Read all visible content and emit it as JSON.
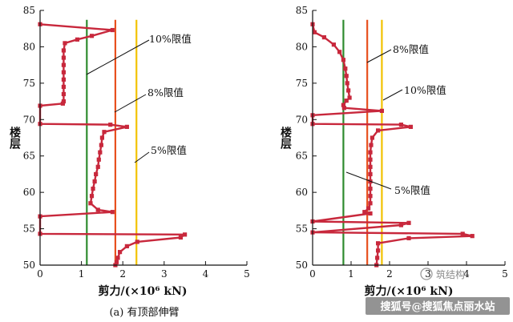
{
  "figure": {
    "caption_a": "(a) 有顶部伸臂",
    "watermark_logo": "筑结构",
    "watermark_bar": "搜狐号@搜狐焦点丽水站"
  },
  "chart_data": [
    {
      "type": "line",
      "xlabel": "剪力/(×10⁶ kN)",
      "ylabel": "楼层",
      "xlim": [
        0,
        5
      ],
      "ylim": [
        50,
        85
      ],
      "xticks": [
        0,
        1,
        2,
        3,
        4,
        5
      ],
      "yticks": [
        50,
        55,
        60,
        65,
        70,
        75,
        80,
        85
      ],
      "grid": false,
      "limit_lines": [
        {
          "label": "10%限值",
          "x": 1.13,
          "color": "#2e8b2e"
        },
        {
          "label": "8%限值",
          "x": 1.82,
          "color": "#e8501e"
        },
        {
          "label": "5%限值",
          "x": 2.33,
          "color": "#f2c200"
        }
      ],
      "series": [
        {
          "color": "#c8283c",
          "points": [
            [
              0.0,
              83.1
            ],
            [
              1.75,
              82.3
            ],
            [
              1.25,
              81.5
            ],
            [
              0.9,
              81.0
            ],
            [
              0.6,
              80.5
            ],
            [
              0.57,
              79.5
            ],
            [
              0.57,
              78.5
            ],
            [
              0.57,
              77.5
            ],
            [
              0.57,
              76.5
            ],
            [
              0.57,
              75.5
            ],
            [
              0.57,
              74.5
            ],
            [
              0.57,
              73.5
            ],
            [
              0.57,
              72.5
            ],
            [
              0.55,
              72.2
            ],
            [
              0.0,
              71.9
            ],
            [
              0.0,
              69.4
            ],
            [
              1.7,
              69.3
            ],
            [
              2.1,
              69.0
            ],
            [
              1.55,
              68.3
            ],
            [
              1.5,
              67.5
            ],
            [
              1.48,
              66.5
            ],
            [
              1.45,
              65.5
            ],
            [
              1.42,
              64.5
            ],
            [
              1.4,
              63.5
            ],
            [
              1.35,
              62.5
            ],
            [
              1.32,
              61.5
            ],
            [
              1.28,
              60.5
            ],
            [
              1.25,
              59.5
            ],
            [
              1.22,
              58.5
            ],
            [
              1.4,
              57.6
            ],
            [
              1.75,
              57.3
            ],
            [
              0.0,
              56.7
            ],
            [
              0.0,
              54.3
            ],
            [
              3.5,
              54.2
            ],
            [
              3.4,
              53.8
            ],
            [
              2.35,
              53.2
            ],
            [
              2.1,
              52.6
            ],
            [
              1.93,
              51.8
            ],
            [
              1.88,
              51.0
            ],
            [
              1.85,
              50.4
            ],
            [
              1.82,
              50.0
            ]
          ]
        }
      ]
    },
    {
      "type": "line",
      "xlabel": "剪力/(×10⁶ kN)",
      "ylabel": "楼层",
      "xlim": [
        0,
        5
      ],
      "ylim": [
        50,
        85
      ],
      "xticks": [
        0,
        1,
        2,
        3,
        4,
        5
      ],
      "yticks": [
        50,
        55,
        60,
        65,
        70,
        75,
        80,
        85
      ],
      "grid": false,
      "limit_lines": [
        {
          "label": "5%限值",
          "x": 0.8,
          "color": "#2e8b2e"
        },
        {
          "label": "8%限值",
          "x": 1.42,
          "color": "#e8501e"
        },
        {
          "label": "10%限值",
          "x": 1.8,
          "color": "#f2c200"
        }
      ],
      "series": [
        {
          "color": "#c8283c",
          "points": [
            [
              0.0,
              83.1
            ],
            [
              0.05,
              82.0
            ],
            [
              0.3,
              81.3
            ],
            [
              0.55,
              80.3
            ],
            [
              0.7,
              79.3
            ],
            [
              0.8,
              78.2
            ],
            [
              0.85,
              77.0
            ],
            [
              0.88,
              76.0
            ],
            [
              0.9,
              75.0
            ],
            [
              0.93,
              74.0
            ],
            [
              0.96,
              73.0
            ],
            [
              0.88,
              72.6
            ],
            [
              0.8,
              72.0
            ],
            [
              0.82,
              71.6
            ],
            [
              1.8,
              71.2
            ],
            [
              0.0,
              70.6
            ],
            [
              0.0,
              69.4
            ],
            [
              2.3,
              69.3
            ],
            [
              2.55,
              69.0
            ],
            [
              1.7,
              68.5
            ],
            [
              1.55,
              67.5
            ],
            [
              1.52,
              66.5
            ],
            [
              1.5,
              65.5
            ],
            [
              1.5,
              64.5
            ],
            [
              1.5,
              63.5
            ],
            [
              1.5,
              62.5
            ],
            [
              1.5,
              61.5
            ],
            [
              1.5,
              60.5
            ],
            [
              1.5,
              59.5
            ],
            [
              1.5,
              58.5
            ],
            [
              1.45,
              57.8
            ],
            [
              1.35,
              57.3
            ],
            [
              1.5,
              57.1
            ],
            [
              0.0,
              56.0
            ],
            [
              2.5,
              55.8
            ],
            [
              2.3,
              55.5
            ],
            [
              0.0,
              54.5
            ],
            [
              3.9,
              54.3
            ],
            [
              4.15,
              54.0
            ],
            [
              2.5,
              53.7
            ],
            [
              1.7,
              53.0
            ],
            [
              1.7,
              52.0
            ],
            [
              1.68,
              51.0
            ],
            [
              1.66,
              50.0
            ]
          ]
        }
      ]
    }
  ]
}
